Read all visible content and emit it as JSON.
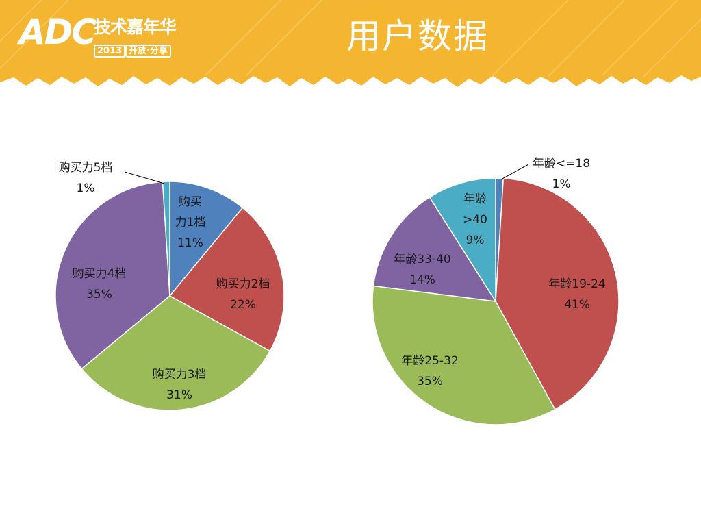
{
  "header": {
    "logo": "ADC",
    "logo_cn": "技术嘉年华",
    "logo_year": "2013",
    "logo_slogan": "开放·分享",
    "title": "用户数据"
  },
  "colors": {
    "banner": "#f4b631",
    "blue": "#4f81bd",
    "red": "#c0504d",
    "green": "#9bbb59",
    "purple": "#8064a2",
    "teal": "#4bacc6"
  },
  "chart_data": [
    {
      "type": "pie",
      "categories": [
        "购买力1档",
        "购买力2档",
        "购买力3档",
        "购买力4档",
        "购买力5档"
      ],
      "values": [
        11,
        22,
        31,
        35,
        1
      ],
      "value_labels": [
        "11%",
        "22%",
        "31%",
        "35%",
        "1%"
      ],
      "colors": [
        "#4f81bd",
        "#c0504d",
        "#9bbb59",
        "#8064a2",
        "#4bacc6"
      ],
      "start": "12 o'clock, clockwise"
    },
    {
      "type": "pie",
      "categories": [
        "年龄<=18",
        "年龄19-24",
        "年龄25-32",
        "年龄33-40",
        "年龄>40"
      ],
      "values": [
        1,
        41,
        35,
        14,
        9
      ],
      "value_labels": [
        "1%",
        "41%",
        "35%",
        "14%",
        "9%"
      ],
      "colors": [
        "#4f81bd",
        "#c0504d",
        "#9bbb59",
        "#8064a2",
        "#4bacc6"
      ],
      "start": "12 o'clock, clockwise"
    }
  ]
}
